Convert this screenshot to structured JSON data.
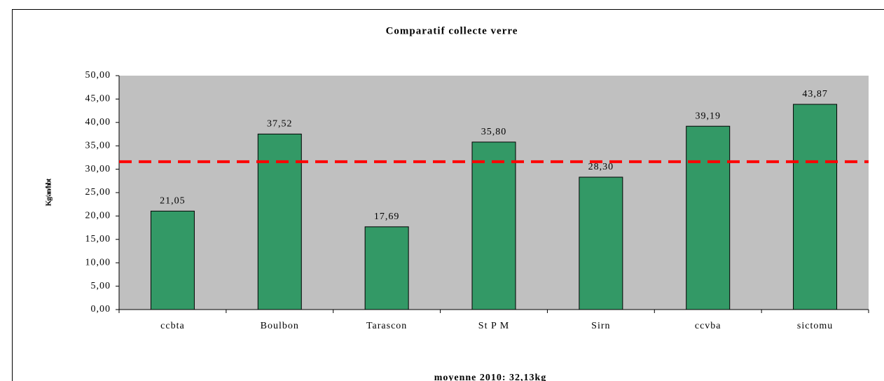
{
  "chart_data": {
    "type": "bar",
    "title": "Comparatif collecte verre",
    "y_label": "Kg/an/hbt",
    "annotation": "moyenne 2010: 32,13kg",
    "categories": [
      "ccbta",
      "Boulbon",
      "Tarascon",
      "St P M",
      "Sirn",
      "ccvba",
      "sictomu"
    ],
    "values": [
      21.05,
      37.52,
      17.69,
      35.8,
      28.3,
      39.19,
      43.87
    ],
    "value_labels": [
      "21,05",
      "37,52",
      "17,69",
      "35,80",
      "28,30",
      "39,19",
      "43,87"
    ],
    "color": "#339966",
    "reference_line": {
      "value": 31.6,
      "color": "#ff0000"
    },
    "ylim": [
      0,
      50
    ],
    "yticks": [
      {
        "value": 0,
        "label": "0,00"
      },
      {
        "value": 5,
        "label": "5,00"
      },
      {
        "value": 10,
        "label": "10,00"
      },
      {
        "value": 15,
        "label": "15,00"
      },
      {
        "value": 20,
        "label": "20,00"
      },
      {
        "value": 25,
        "label": "25,00"
      },
      {
        "value": 30,
        "label": "30,00"
      },
      {
        "value": 35,
        "label": "35,00"
      },
      {
        "value": 40,
        "label": "40,00"
      },
      {
        "value": 45,
        "label": "45,00"
      },
      {
        "value": 50,
        "label": "50,00"
      }
    ],
    "grid": false
  }
}
